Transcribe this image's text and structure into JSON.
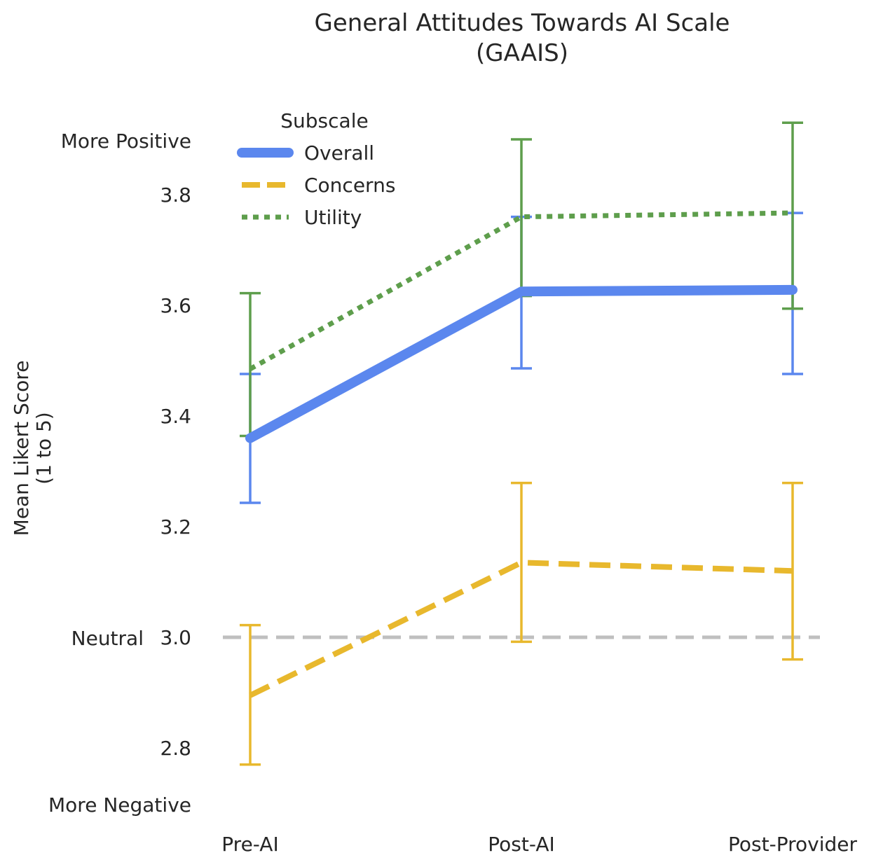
{
  "chart_data": {
    "type": "line",
    "title": [
      "General Attitudes Towards AI Scale",
      "(GAAIS)"
    ],
    "ylabel": [
      "Mean Likert Score",
      "(1 to 5)"
    ],
    "categories": [
      "Pre-AI",
      "Post-AI",
      "Post-Provider"
    ],
    "ylim": [
      2.72,
      3.92
    ],
    "yticks": [
      2.8,
      3.0,
      3.2,
      3.4,
      3.6,
      3.8
    ],
    "ytick_labels": [
      "2.8",
      "3.0",
      "3.2",
      "3.4",
      "3.6",
      "3.8"
    ],
    "y_annotations": [
      {
        "value": 3.9,
        "label": "More Positive"
      },
      {
        "value": 3.0,
        "label": "Neutral"
      },
      {
        "value": 2.7,
        "label": "More Negative"
      }
    ],
    "reference_line": {
      "value": 3.0,
      "color": "#bfbfbf",
      "style": "dashed"
    },
    "grid": false,
    "legend": {
      "title": "Subscale",
      "placement": "top-left"
    },
    "series": [
      {
        "name": "Overall",
        "color": "#5b87ee",
        "style": "solid",
        "values": [
          3.36,
          3.625,
          3.628
        ],
        "err_low": [
          3.243,
          3.486,
          3.476
        ],
        "err_high": [
          3.476,
          3.76,
          3.767
        ]
      },
      {
        "name": "Concerns",
        "color": "#e8b82d",
        "style": "dashed",
        "values": [
          2.895,
          3.135,
          3.12
        ],
        "err_low": [
          2.77,
          2.992,
          2.96
        ],
        "err_high": [
          3.022,
          3.279,
          3.279
        ]
      },
      {
        "name": "Utility",
        "color": "#5e9e4c",
        "style": "dotted",
        "values": [
          3.485,
          3.76,
          3.767
        ],
        "err_low": [
          3.364,
          3.617,
          3.594
        ],
        "err_high": [
          3.622,
          3.9,
          3.93
        ]
      }
    ]
  }
}
